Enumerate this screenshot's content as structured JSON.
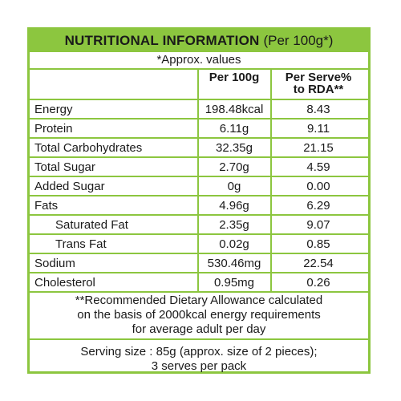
{
  "header": {
    "title_bold": "NUTRITIONAL INFORMATION",
    "title_light": "(Per 100g*)"
  },
  "approx_note": "*Approx. values",
  "columns": {
    "per100": "Per 100g",
    "serve_line1": "Per Serve%",
    "serve_line2": "to RDA**"
  },
  "rows": [
    {
      "label": "Energy",
      "per100": "198.48kcal",
      "rda": "8.43"
    },
    {
      "label": "Protein",
      "per100": "6.11g",
      "rda": "9.11"
    },
    {
      "label": "Total Carbohydrates",
      "per100": "32.35g",
      "rda": "21.15"
    },
    {
      "label": "Total Sugar",
      "per100": "2.70g",
      "rda": "4.59"
    },
    {
      "label": "Added Sugar",
      "per100": "0g",
      "rda": "0.00"
    },
    {
      "label": "Fats",
      "per100": "4.96g",
      "rda": "6.29"
    },
    {
      "label": "Saturated Fat",
      "per100": "2.35g",
      "rda": "9.07"
    },
    {
      "label": "Trans Fat",
      "per100": "0.02g",
      "rda": "0.85"
    },
    {
      "label": "Sodium",
      "per100": "530.46mg",
      "rda": "22.54"
    },
    {
      "label": "Cholesterol",
      "per100": "0.95mg",
      "rda": "0.26"
    }
  ],
  "rda_note": {
    "line1": "**Recommended Dietary Allowance calculated",
    "line2": "on the basis of 2000kcal energy requirements",
    "line3": "for average adult per day"
  },
  "serving": {
    "line1": "Serving size : 85g (approx. size of 2 pieces);",
    "line2": "3 serves per pack"
  },
  "colors": {
    "accent": "#8cc63f",
    "text": "#1a1a1a",
    "background": "#ffffff"
  }
}
